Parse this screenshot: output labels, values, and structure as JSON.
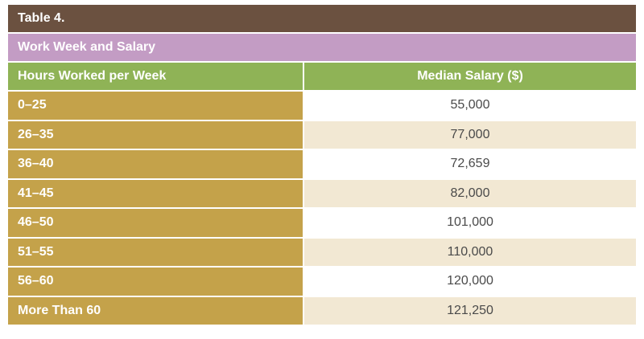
{
  "table": {
    "title": "Table 4.",
    "subtitle": "Work Week and Salary",
    "headers": {
      "hours": "Hours Worked per Week",
      "salary": "Median Salary ($)"
    },
    "rows": [
      {
        "hours": "0–25",
        "salary": "55,000"
      },
      {
        "hours": "26–35",
        "salary": "77,000"
      },
      {
        "hours": "36–40",
        "salary": "72,659"
      },
      {
        "hours": "41–45",
        "salary": "82,000"
      },
      {
        "hours": "46–50",
        "salary": "101,000"
      },
      {
        "hours": "51–55",
        "salary": "110,000"
      },
      {
        "hours": "56–60",
        "salary": "120,000"
      },
      {
        "hours": "More Than 60",
        "salary": "121,250"
      }
    ]
  },
  "colors": {
    "title_bar": "#6b5140",
    "subtitle_bar": "#c39cc4",
    "header_row": "#8fb356",
    "label_column": "#c4a24a",
    "alt_row": "#f2e8d3"
  }
}
